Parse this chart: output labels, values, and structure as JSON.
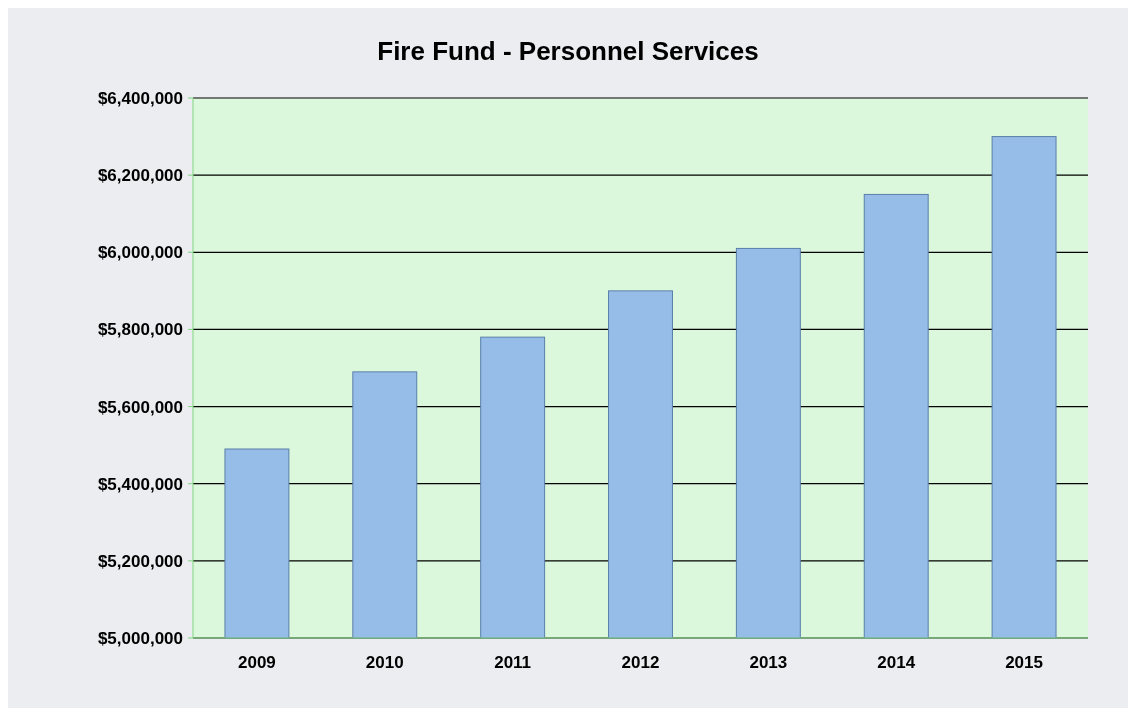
{
  "chart_data": {
    "type": "bar",
    "title": "Fire Fund - Personnel Services",
    "categories": [
      "2009",
      "2010",
      "2011",
      "2012",
      "2013",
      "2014",
      "2015"
    ],
    "values": [
      5490000,
      5690000,
      5780000,
      5900000,
      6010000,
      6150000,
      6300000
    ],
    "color": "#95bde8",
    "ylim": [
      5000000,
      6400000
    ],
    "yticks": [
      {
        "value": 5000000,
        "label": "$5,000,000"
      },
      {
        "value": 5200000,
        "label": "$5,200,000"
      },
      {
        "value": 5400000,
        "label": "$5,400,000"
      },
      {
        "value": 5600000,
        "label": "$5,600,000"
      },
      {
        "value": 5800000,
        "label": "$5,800,000"
      },
      {
        "value": 6000000,
        "label": "$6,000,000"
      },
      {
        "value": 6200000,
        "label": "$6,200,000"
      },
      {
        "value": 6400000,
        "label": "$6,400,000"
      }
    ],
    "grid": "y"
  }
}
